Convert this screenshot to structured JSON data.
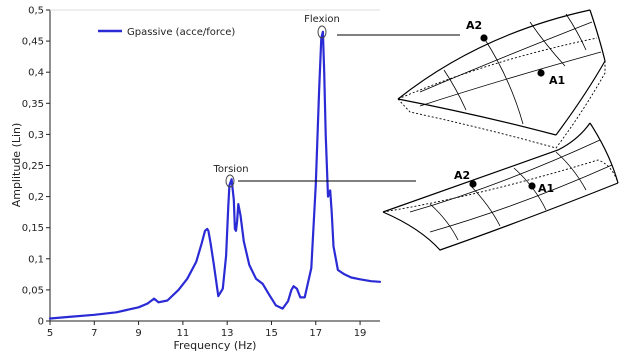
{
  "chart_data": {
    "type": "line",
    "xlabel": "Frequency (Hz)",
    "ylabel": "Amplitude (Lin)",
    "xlim": [
      5,
      19.9
    ],
    "ylim": [
      0,
      0.5
    ],
    "x_ticks": [
      "5",
      "7",
      "9",
      "11",
      "13",
      "15",
      "17",
      "19"
    ],
    "y_ticks": [
      "0",
      "0,05",
      "0,1",
      "0,15",
      "0,2",
      "0,25",
      "0,3",
      "0,35",
      "0,4",
      "0,45",
      "0,5"
    ],
    "legend_position": "top-left",
    "grid": false,
    "series": [
      {
        "name": "Gpassive (acce/force)",
        "color": "#2b2bd6",
        "x": [
          5.0,
          6.0,
          7.0,
          8.0,
          9.0,
          9.4,
          9.7,
          9.9,
          10.3,
          10.8,
          11.2,
          11.6,
          11.85,
          12.0,
          12.1,
          12.15,
          12.25,
          12.4,
          12.6,
          12.8,
          12.95,
          13.05,
          13.1,
          13.2,
          13.3,
          13.35,
          13.4,
          13.45,
          13.5,
          13.6,
          13.75,
          14.0,
          14.3,
          14.6,
          14.9,
          15.2,
          15.5,
          15.75,
          15.9,
          16.0,
          16.15,
          16.3,
          16.5,
          16.8,
          17.0,
          17.15,
          17.25,
          17.32,
          17.38,
          17.45,
          17.55,
          17.65,
          17.72,
          17.8,
          18.0,
          18.3,
          18.6,
          19.0,
          19.5,
          19.9
        ],
        "y": [
          0.004,
          0.007,
          0.01,
          0.014,
          0.022,
          0.028,
          0.036,
          0.03,
          0.033,
          0.05,
          0.068,
          0.095,
          0.125,
          0.145,
          0.148,
          0.145,
          0.125,
          0.09,
          0.04,
          0.052,
          0.105,
          0.185,
          0.218,
          0.228,
          0.195,
          0.148,
          0.145,
          0.16,
          0.188,
          0.17,
          0.128,
          0.09,
          0.068,
          0.06,
          0.042,
          0.025,
          0.02,
          0.032,
          0.05,
          0.056,
          0.052,
          0.038,
          0.038,
          0.085,
          0.22,
          0.37,
          0.455,
          0.465,
          0.4,
          0.3,
          0.2,
          0.21,
          0.175,
          0.12,
          0.082,
          0.075,
          0.07,
          0.067,
          0.064,
          0.063
        ]
      }
    ],
    "annotations": [
      {
        "text": "Flexion",
        "x": 17.32,
        "y": 0.465
      },
      {
        "text": "Torsion",
        "x": 13.2,
        "y": 0.228
      }
    ]
  },
  "diagram": {
    "top_plate": {
      "point_a2": "A2",
      "point_a1": "A1"
    },
    "bottom_plate": {
      "point_a2": "A2",
      "point_a1": "A1"
    }
  }
}
